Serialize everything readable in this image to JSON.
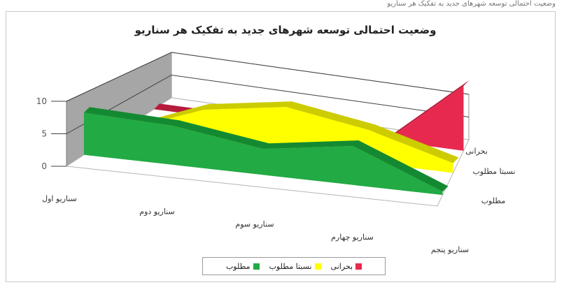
{
  "top_strip": "وضعیت احتمالی توسعه شهرهای جدید به تفکیک هر سناریو",
  "chart_data": {
    "type": "area",
    "title": "وضعیت احتمالی توسعه شهرهای جدید به تفکیک هر سناریو",
    "categories": [
      "سناریو اول",
      "سناریو دوم",
      "سناریو سوم",
      "سناریو چهارم",
      "سناریو پنجم"
    ],
    "yticks": [
      0,
      5,
      10
    ],
    "ylim": [
      0,
      10
    ],
    "three_d": true,
    "series": [
      {
        "name": "مطلوب",
        "values": [
          6.5,
          6.0,
          4.0,
          6.0,
          0.5
        ],
        "color": "#22aa44"
      },
      {
        "name": "نسبتا مطلوب",
        "values": [
          0,
          5.0,
          7.0,
          5.0,
          1.5
        ],
        "color": "#ffff00"
      },
      {
        "name": "بحرانی",
        "values": [
          0,
          0,
          0,
          0,
          10.0
        ],
        "color": "#e8294f"
      }
    ],
    "legend_position": "bottom"
  }
}
